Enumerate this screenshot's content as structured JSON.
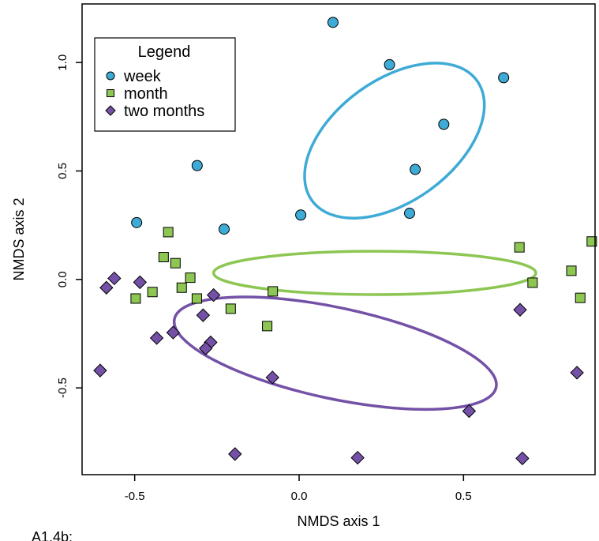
{
  "caption": "A1.4b:",
  "chart_data": {
    "type": "scatter",
    "xlabel": "NMDS axis 1",
    "ylabel": "NMDS axis 2",
    "xlim": [
      -0.66,
      0.9
    ],
    "ylim": [
      -0.9,
      1.27
    ],
    "x_ticks": [
      -0.5,
      0.0,
      0.5
    ],
    "y_ticks": [
      -0.5,
      0.0,
      0.5,
      1.0
    ],
    "grid": false,
    "legend": {
      "title": "Legend",
      "placement": "top-left"
    },
    "series": [
      {
        "name": "week",
        "marker": "circle",
        "color": "#3eaad6",
        "points": [
          [
            0.103,
            1.185
          ],
          [
            0.275,
            0.99
          ],
          [
            0.622,
            0.93
          ],
          [
            0.44,
            0.715
          ],
          [
            -0.31,
            0.525
          ],
          [
            0.353,
            0.507
          ],
          [
            0.336,
            0.305
          ],
          [
            0.005,
            0.297
          ],
          [
            -0.494,
            0.262
          ],
          [
            -0.228,
            0.232
          ]
        ],
        "ellipse": {
          "cx": 0.29,
          "cy": 0.64,
          "rx": 0.31,
          "ry": 0.28,
          "angle_deg": 36
        }
      },
      {
        "name": "month",
        "marker": "square",
        "color": "#8dc652",
        "points": [
          [
            -0.398,
            0.218
          ],
          [
            -0.412,
            0.103
          ],
          [
            -0.376,
            0.075
          ],
          [
            -0.331,
            0.008
          ],
          [
            -0.357,
            -0.038
          ],
          [
            -0.446,
            -0.058
          ],
          [
            -0.311,
            -0.088
          ],
          [
            -0.497,
            -0.088
          ],
          [
            -0.208,
            -0.135
          ],
          [
            -0.08,
            -0.055
          ],
          [
            -0.097,
            -0.215
          ],
          [
            0.67,
            0.148
          ],
          [
            0.89,
            0.175
          ],
          [
            0.828,
            0.04
          ],
          [
            0.71,
            -0.015
          ],
          [
            0.855,
            -0.085
          ]
        ],
        "ellipse": {
          "cx": 0.23,
          "cy": 0.03,
          "rx": 0.49,
          "ry": 0.1,
          "angle_deg": 0
        }
      },
      {
        "name": "two months",
        "marker": "diamond",
        "color": "#7451a6",
        "points": [
          [
            -0.586,
            -0.038
          ],
          [
            -0.562,
            0.005
          ],
          [
            -0.484,
            -0.013
          ],
          [
            -0.26,
            -0.072
          ],
          [
            -0.292,
            -0.165
          ],
          [
            -0.383,
            -0.245
          ],
          [
            -0.433,
            -0.27
          ],
          [
            -0.269,
            -0.29
          ],
          [
            -0.284,
            -0.318
          ],
          [
            -0.605,
            -0.42
          ],
          [
            -0.081,
            -0.452
          ],
          [
            0.672,
            -0.14
          ],
          [
            0.845,
            -0.43
          ],
          [
            0.517,
            -0.607
          ],
          [
            -0.195,
            -0.805
          ],
          [
            0.178,
            -0.822
          ],
          [
            0.679,
            -0.825
          ]
        ],
        "ellipse": {
          "cx": 0.11,
          "cy": -0.34,
          "rx": 0.5,
          "ry": 0.21,
          "angle_deg": -12
        }
      }
    ]
  }
}
